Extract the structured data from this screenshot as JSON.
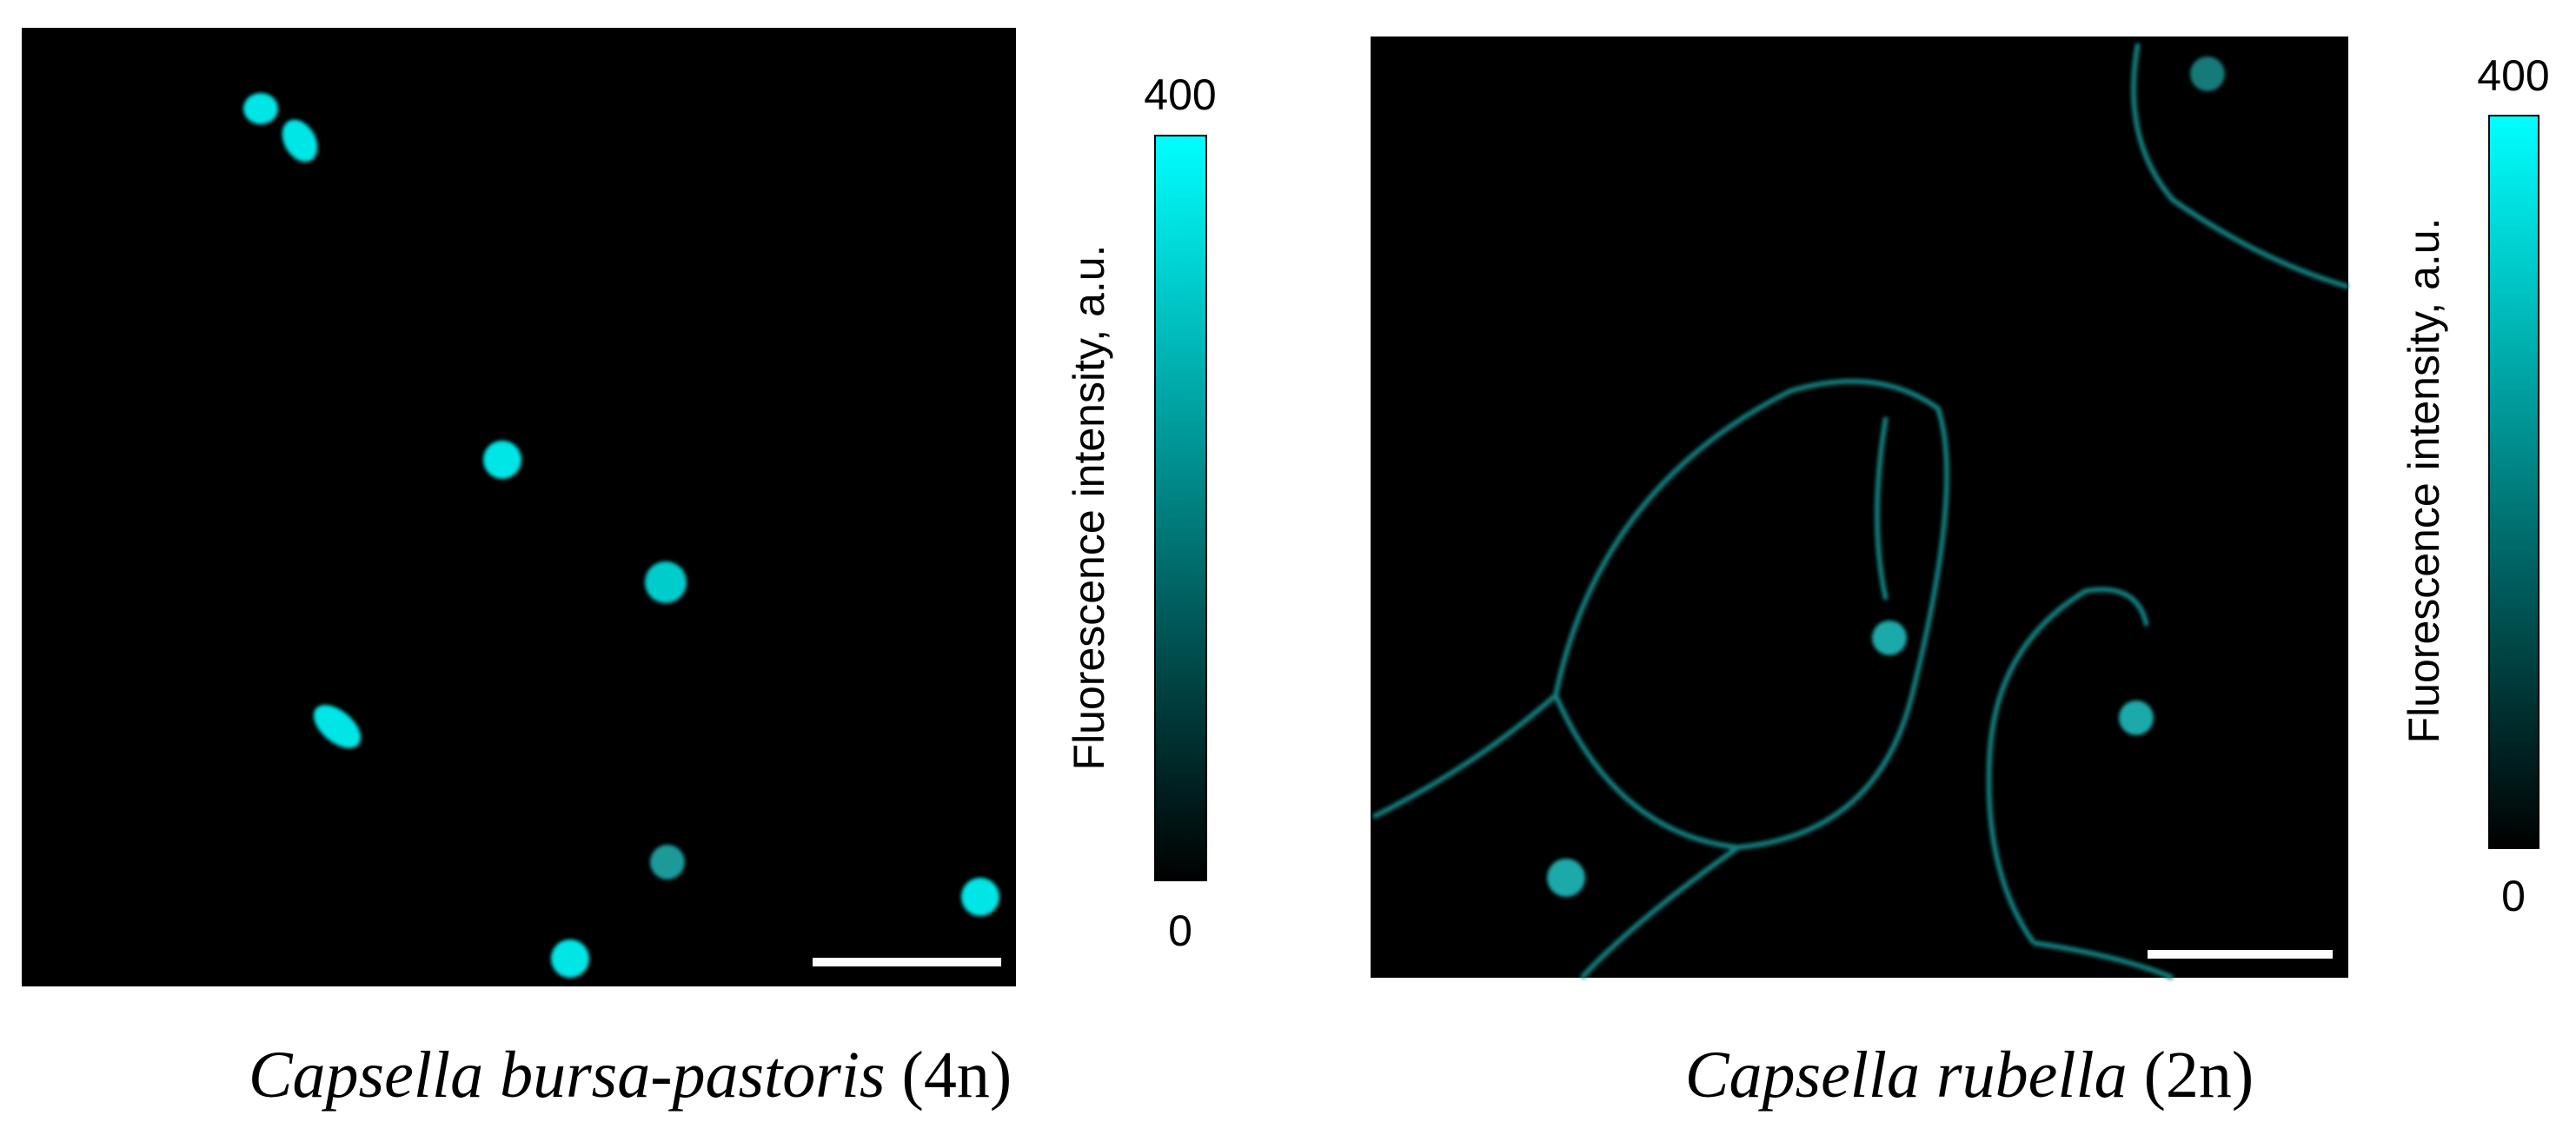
{
  "panels": [
    {
      "caption": {
        "species": "Capsella bursa-pastoris",
        "ploidy": "(4n)"
      },
      "colorbar": {
        "label": "Fluorescence intensity, a.u.",
        "max": "400",
        "min": "0"
      }
    },
    {
      "caption": {
        "species": "Capsella rubella",
        "ploidy": "(2n)"
      },
      "colorbar": {
        "label": "Fluorescence intensity, a.u.",
        "max": "400",
        "min": "0"
      }
    }
  ]
}
